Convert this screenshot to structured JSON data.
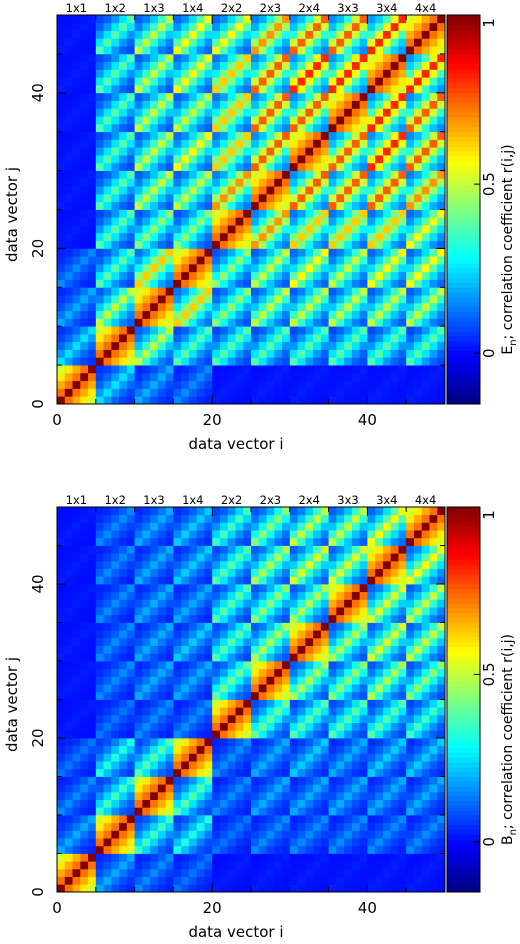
{
  "chart_data": [
    {
      "type": "heatmap",
      "size": 50,
      "block": 5,
      "bins": [
        "1x1",
        "1x2",
        "1x3",
        "1x4",
        "2x2",
        "2x3",
        "2x4",
        "3x3",
        "3x4",
        "4x4"
      ],
      "x_ticks": [
        "0",
        "20",
        "40"
      ],
      "y_ticks": [
        "0",
        "20",
        "40"
      ],
      "xlabel": "data vector i",
      "ylabel": "data vector j",
      "colorbar_ticks": [
        "0",
        "0.5",
        "1"
      ],
      "colorbar_label_main": "E",
      "colorbar_label_sub": "n",
      "colorbar_label_rest": "; correlation coefficient r(i,j)",
      "xlim": [
        0,
        50
      ],
      "ylim": [
        0,
        50
      ],
      "clim": [
        -0.15,
        1
      ],
      "colormap": "jet",
      "block_correlation": [
        [
          1.0,
          0.2,
          0.15,
          0.12,
          0.02,
          0.02,
          0.02,
          0.02,
          0.02,
          0.02
        ],
        [
          0.2,
          1.0,
          0.4,
          0.3,
          0.3,
          0.3,
          0.3,
          0.3,
          0.3,
          0.3
        ],
        [
          0.15,
          0.4,
          1.0,
          0.5,
          0.35,
          0.4,
          0.4,
          0.4,
          0.4,
          0.4
        ],
        [
          0.12,
          0.3,
          0.5,
          1.0,
          0.35,
          0.4,
          0.45,
          0.4,
          0.45,
          0.45
        ],
        [
          0.02,
          0.3,
          0.35,
          0.35,
          1.0,
          0.55,
          0.5,
          0.5,
          0.5,
          0.45
        ],
        [
          0.02,
          0.3,
          0.4,
          0.4,
          0.55,
          1.0,
          0.6,
          0.6,
          0.6,
          0.55
        ],
        [
          0.02,
          0.3,
          0.4,
          0.45,
          0.5,
          0.6,
          1.0,
          0.6,
          0.65,
          0.6
        ],
        [
          0.02,
          0.3,
          0.4,
          0.4,
          0.5,
          0.6,
          0.6,
          1.0,
          0.65,
          0.6
        ],
        [
          0.02,
          0.3,
          0.4,
          0.45,
          0.5,
          0.6,
          0.65,
          0.65,
          1.0,
          0.65
        ],
        [
          0.02,
          0.3,
          0.4,
          0.45,
          0.45,
          0.55,
          0.6,
          0.6,
          0.65,
          1.0
        ]
      ]
    },
    {
      "type": "heatmap",
      "size": 50,
      "block": 5,
      "bins": [
        "1x1",
        "1x2",
        "1x3",
        "1x4",
        "2x2",
        "2x3",
        "2x4",
        "3x3",
        "3x4",
        "4x4"
      ],
      "x_ticks": [
        "0",
        "20",
        "40"
      ],
      "y_ticks": [
        "0",
        "20",
        "40"
      ],
      "xlabel": "data vector i",
      "ylabel": "data vector j",
      "colorbar_ticks": [
        "0",
        "0.5",
        "1"
      ],
      "colorbar_label_main": "B",
      "colorbar_label_sub": "n",
      "colorbar_label_rest": "; correlation coefficient r(i,j)",
      "xlim": [
        0,
        50
      ],
      "ylim": [
        0,
        50
      ],
      "clim": [
        -0.15,
        1
      ],
      "colormap": "jet",
      "block_correlation": [
        [
          1.0,
          0.15,
          0.12,
          0.1,
          0.02,
          0.02,
          0.02,
          0.02,
          0.02,
          0.02
        ],
        [
          0.15,
          1.0,
          0.28,
          0.25,
          0.1,
          0.12,
          0.12,
          0.12,
          0.12,
          0.12
        ],
        [
          0.12,
          0.28,
          1.0,
          0.3,
          0.12,
          0.15,
          0.15,
          0.15,
          0.15,
          0.15
        ],
        [
          0.1,
          0.25,
          0.3,
          1.0,
          0.12,
          0.15,
          0.18,
          0.15,
          0.18,
          0.18
        ],
        [
          0.02,
          0.1,
          0.12,
          0.12,
          1.0,
          0.32,
          0.3,
          0.3,
          0.3,
          0.28
        ],
        [
          0.02,
          0.12,
          0.15,
          0.15,
          0.32,
          1.0,
          0.38,
          0.35,
          0.38,
          0.35
        ],
        [
          0.02,
          0.12,
          0.15,
          0.18,
          0.3,
          0.38,
          1.0,
          0.38,
          0.42,
          0.4
        ],
        [
          0.02,
          0.12,
          0.15,
          0.15,
          0.3,
          0.35,
          0.38,
          1.0,
          0.42,
          0.4
        ],
        [
          0.02,
          0.12,
          0.15,
          0.18,
          0.3,
          0.38,
          0.42,
          0.42,
          1.0,
          0.45
        ],
        [
          0.02,
          0.12,
          0.15,
          0.18,
          0.28,
          0.35,
          0.4,
          0.4,
          0.45,
          1.0
        ]
      ]
    }
  ]
}
